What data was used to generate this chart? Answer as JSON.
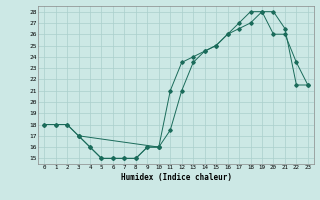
{
  "xlabel": "Humidex (Indice chaleur)",
  "bg_color": "#cce8e5",
  "line_color": "#1a6b5a",
  "grid_color": "#aacfcc",
  "xlim": [
    -0.5,
    23.5
  ],
  "ylim": [
    14.5,
    28.5
  ],
  "xticks": [
    0,
    1,
    2,
    3,
    4,
    5,
    6,
    7,
    8,
    9,
    10,
    11,
    12,
    13,
    14,
    15,
    16,
    17,
    18,
    19,
    20,
    21,
    22,
    23
  ],
  "yticks": [
    15,
    16,
    17,
    18,
    19,
    20,
    21,
    22,
    23,
    24,
    25,
    26,
    27,
    28
  ],
  "line1_x": [
    0,
    1,
    2,
    3,
    10,
    11,
    12,
    13,
    14,
    15,
    16,
    17,
    18,
    19,
    20,
    21,
    22,
    23
  ],
  "line1_y": [
    18,
    18,
    18,
    17,
    16,
    21,
    23.5,
    24,
    24.5,
    25,
    26,
    26.5,
    27,
    28,
    28,
    26.5,
    21.5,
    21.5
  ],
  "line2_x": [
    0,
    1,
    2,
    3,
    4,
    5,
    6,
    7,
    8,
    9,
    10,
    11,
    12,
    13,
    14,
    15,
    16,
    17,
    18,
    19,
    20,
    21,
    22,
    23
  ],
  "line2_y": [
    18,
    18,
    18,
    17,
    16,
    15,
    15,
    15,
    15,
    16,
    16,
    17.5,
    21,
    23.5,
    24.5,
    25,
    26,
    27,
    28,
    28,
    26,
    26,
    23.5,
    21.5
  ],
  "line3_x": [
    3,
    4,
    5,
    6,
    7,
    8,
    9,
    10
  ],
  "line3_y": [
    17,
    16,
    15,
    15,
    15,
    15,
    16,
    16
  ]
}
